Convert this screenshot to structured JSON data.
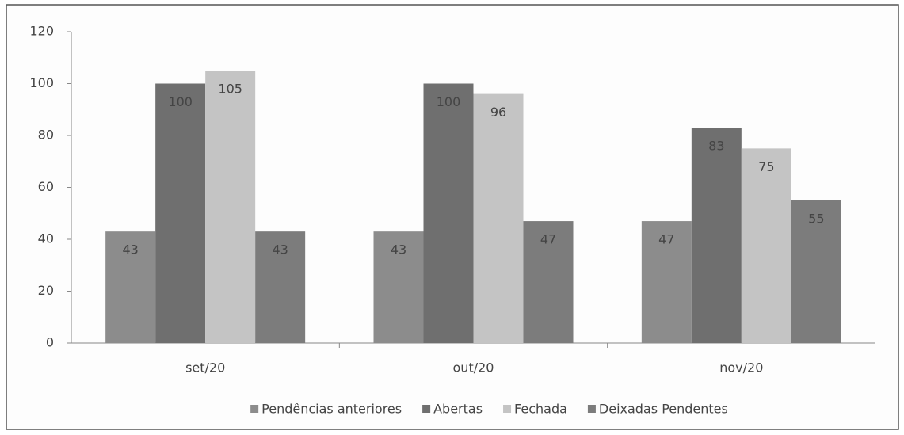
{
  "chart_data": {
    "type": "bar",
    "categories": [
      "set/20",
      "out/20",
      "nov/20"
    ],
    "series": [
      {
        "name": "Pendências anteriores",
        "color": "#8c8c8c",
        "values": [
          43,
          43,
          47
        ]
      },
      {
        "name": "Abertas",
        "color": "#6f6f6f",
        "values": [
          100,
          100,
          83
        ]
      },
      {
        "name": "Fechada",
        "color": "#c4c4c4",
        "values": [
          105,
          96,
          75
        ]
      },
      {
        "name": "Deixadas Pendentes",
        "color": "#7c7c7c",
        "values": [
          43,
          47,
          55
        ]
      }
    ],
    "ylim": [
      0,
      120
    ],
    "yticks": [
      0,
      20,
      40,
      60,
      80,
      100,
      120
    ],
    "grid": false,
    "legend": "bottom"
  }
}
